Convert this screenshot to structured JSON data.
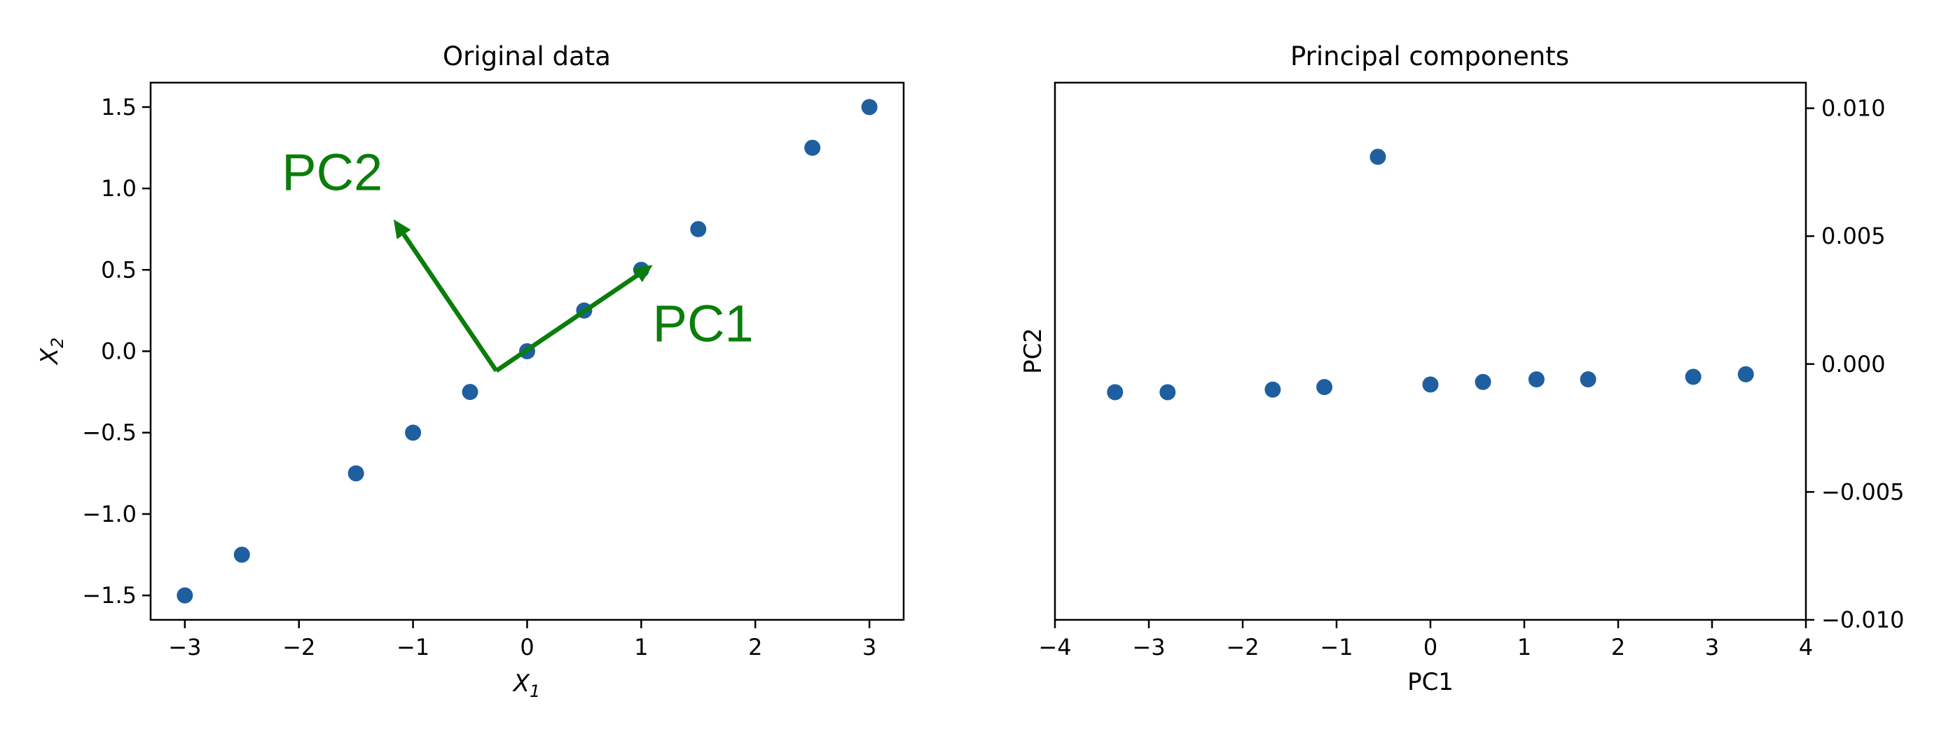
{
  "chart_data": [
    {
      "type": "scatter",
      "title": "Original data",
      "xlabel": "X",
      "xlabel_sub": "1",
      "ylabel": "X",
      "ylabel_sub": "2",
      "xlim": [
        -3.3,
        3.3
      ],
      "ylim": [
        -1.65,
        1.65
      ],
      "xticks": [
        -3,
        -2,
        -1,
        0,
        1,
        2,
        3
      ],
      "xtick_labels": [
        "−3",
        "−2",
        "−1",
        "0",
        "1",
        "2",
        "3"
      ],
      "yticks": [
        1.5,
        1.0,
        0.5,
        0.0,
        -0.5,
        -1.0,
        -1.5
      ],
      "ytick_labels": [
        "1.5",
        "1.0",
        "0.5",
        "0.0",
        "−0.5",
        "−1.0",
        "−1.5"
      ],
      "x": [
        -3,
        -2.5,
        -1.5,
        -1,
        -0.5,
        0,
        0.5,
        1,
        1.5,
        2.5,
        3
      ],
      "y": [
        -1.5,
        -1.25,
        -0.75,
        -0.5,
        -0.25,
        0,
        0.25,
        0.5,
        0.75,
        1.25,
        1.5
      ],
      "color": "#1f5f9f",
      "annotations": [
        {
          "text": "PC1",
          "from": [
            -0.27,
            -0.12
          ],
          "to": [
            1.1,
            0.53
          ],
          "label_at": [
            1.1,
            0.06
          ]
        },
        {
          "text": "PC2",
          "from": [
            -0.27,
            -0.12
          ],
          "to": [
            -1.17,
            0.81
          ],
          "label_at": [
            -2.15,
            0.99
          ]
        }
      ],
      "annotation_color": "#0a7d0a"
    },
    {
      "type": "scatter",
      "title": "Principal components",
      "xlabel": "PC1",
      "ylabel": "PC2",
      "xlim": [
        -4,
        4
      ],
      "ylim": [
        -0.01,
        0.011
      ],
      "y_axis_side": "right",
      "xticks": [
        -4,
        -3,
        -2,
        -1,
        0,
        1,
        2,
        3,
        4
      ],
      "xtick_labels": [
        "−4",
        "−3",
        "−2",
        "−1",
        "0",
        "1",
        "2",
        "3",
        "4"
      ],
      "yticks": [
        0.01,
        0.005,
        0.0,
        -0.005,
        -0.01
      ],
      "ytick_labels": [
        "0.010",
        "0.005",
        "0.000",
        "−0.005",
        "−0.010"
      ],
      "x": [
        -3.36,
        -2.8,
        -1.68,
        -1.13,
        -0.56,
        0,
        0.56,
        1.13,
        1.68,
        2.8,
        3.36
      ],
      "y": [
        -0.0011,
        -0.0011,
        -0.001,
        -0.0009,
        0.0081,
        -0.0008,
        -0.0007,
        -0.0006,
        -0.0006,
        -0.0005,
        -0.0004
      ],
      "color": "#1f5f9f"
    }
  ]
}
